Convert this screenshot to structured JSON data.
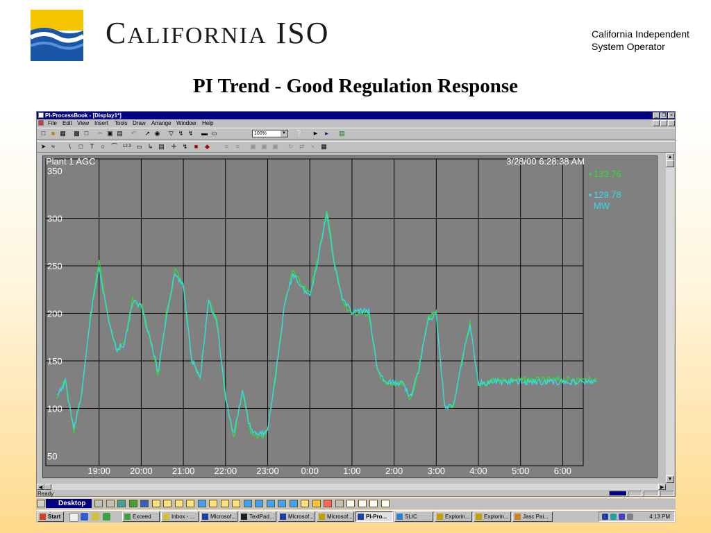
{
  "header": {
    "logo_text_big1": "C",
    "logo_text_small": "ALIFORNIA",
    "logo_text_big2": "ISO",
    "org_line1": "California Independent",
    "org_line2": "System Operator",
    "slide_title": "PI Trend - Good Regulation Response"
  },
  "window": {
    "title": "PI-ProcessBook - [Display1*]",
    "min": "_",
    "restore": "❐",
    "close": "×",
    "menu": [
      "File",
      "Edit",
      "View",
      "Insert",
      "Tools",
      "Draw",
      "Arrange",
      "Window",
      "Help"
    ],
    "zoom_value": "100%",
    "status_text": "Ready"
  },
  "chart_data": {
    "type": "line",
    "title": "Plant 1 AGC",
    "timestamp": "3/28/00 6:28:38 AM",
    "legend": [
      {
        "value": "133.76",
        "color": "#33dd33"
      },
      {
        "value": "129.78",
        "unit": "MW",
        "color": "#33ddee"
      }
    ],
    "ylim": [
      50,
      350
    ],
    "yticks": [
      "350",
      "300",
      "250",
      "200",
      "150",
      "100",
      "50"
    ],
    "xticks": [
      "19:00",
      "20:00",
      "21:00",
      "22:00",
      "23:00",
      "0:00",
      "1:00",
      "2:00",
      "3:00",
      "4:00",
      "5:00",
      "6:00"
    ],
    "x_hours": [
      18.0,
      18.2,
      18.4,
      18.6,
      18.8,
      19.0,
      19.2,
      19.4,
      19.6,
      19.8,
      20.0,
      20.2,
      20.4,
      20.6,
      20.8,
      21.0,
      21.2,
      21.4,
      21.6,
      21.8,
      22.0,
      22.2,
      22.4,
      22.6,
      22.8,
      23.0,
      23.2,
      23.4,
      23.6,
      23.8,
      24.0,
      24.2,
      24.4,
      24.6,
      24.8,
      25.0,
      25.2,
      25.4,
      25.6,
      25.8,
      26.0,
      26.2,
      26.4,
      26.6,
      26.8,
      27.0,
      27.2,
      27.4,
      27.6,
      27.8,
      28.0,
      28.2,
      28.4,
      28.6,
      28.8,
      29.0,
      29.2,
      29.4,
      29.6,
      29.8,
      30.0,
      30.2,
      30.4,
      30.6,
      30.8
    ],
    "series": [
      {
        "color": "#33dd33",
        "values": [
          110,
          130,
          75,
          120,
          200,
          255,
          200,
          160,
          170,
          215,
          210,
          175,
          135,
          200,
          245,
          230,
          150,
          130,
          215,
          190,
          110,
          70,
          120,
          75,
          70,
          75,
          140,
          210,
          245,
          230,
          220,
          260,
          310,
          250,
          210,
          200,
          200,
          200,
          140,
          125,
          125,
          125,
          110,
          145,
          195,
          200,
          100,
          100,
          150,
          190,
          125,
          125,
          130,
          130,
          130,
          130,
          130,
          130,
          130,
          130,
          130,
          130,
          130,
          130,
          130
        ]
      },
      {
        "color": "#33ddee",
        "values": [
          112,
          128,
          78,
          118,
          198,
          250,
          198,
          162,
          168,
          212,
          208,
          176,
          138,
          198,
          242,
          228,
          152,
          132,
          212,
          188,
          112,
          72,
          118,
          77,
          72,
          77,
          138,
          208,
          242,
          228,
          218,
          258,
          305,
          248,
          212,
          202,
          202,
          202,
          142,
          127,
          127,
          127,
          112,
          143,
          193,
          198,
          102,
          102,
          148,
          188,
          127,
          127,
          128,
          128,
          128,
          128,
          128,
          128,
          128,
          128,
          128,
          128,
          128,
          128,
          128
        ]
      }
    ]
  },
  "desktopbar": {
    "label": "Desktop"
  },
  "taskbar": {
    "start": "Start",
    "tasks": [
      "Exceed",
      "Inbox - ...",
      "Microsof...",
      "TextPad...",
      "Microsof...",
      "Microsof...",
      "PI-Pro...",
      "SLIC",
      "Explorin...",
      "Explorin...",
      "Jasc Pai..."
    ],
    "clock": "4:13 PM"
  }
}
